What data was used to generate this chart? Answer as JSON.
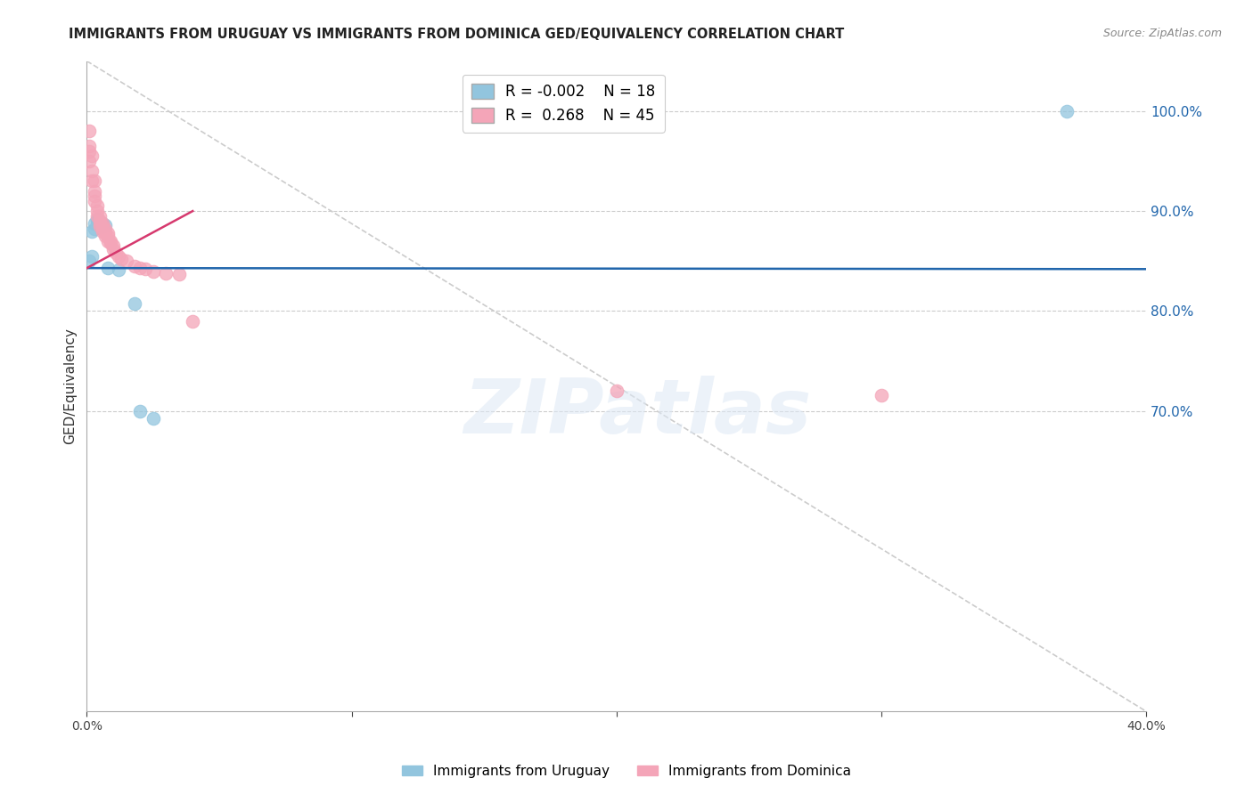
{
  "title": "IMMIGRANTS FROM URUGUAY VS IMMIGRANTS FROM DOMINICA GED/EQUIVALENCY CORRELATION CHART",
  "source": "Source: ZipAtlas.com",
  "ylabel": "GED/Equivalency",
  "ytick_values": [
    1.0,
    0.9,
    0.8,
    0.7
  ],
  "xlim": [
    0.0,
    0.4
  ],
  "ylim": [
    0.4,
    1.05
  ],
  "legend_r_blue": "-0.002",
  "legend_n_blue": "18",
  "legend_r_pink": "0.268",
  "legend_n_pink": "45",
  "legend_label_blue": "Immigrants from Uruguay",
  "legend_label_pink": "Immigrants from Dominica",
  "blue_scatter_x": [
    0.001,
    0.002,
    0.002,
    0.003,
    0.003,
    0.004,
    0.004,
    0.005,
    0.005,
    0.006,
    0.006,
    0.007,
    0.008,
    0.012,
    0.018,
    0.02,
    0.025,
    0.37
  ],
  "blue_scatter_y": [
    0.85,
    0.855,
    0.88,
    0.882,
    0.888,
    0.89,
    0.892,
    0.886,
    0.887,
    0.888,
    0.885,
    0.886,
    0.843,
    0.841,
    0.808,
    0.7,
    0.693,
    1.0
  ],
  "pink_scatter_x": [
    0.001,
    0.001,
    0.001,
    0.001,
    0.002,
    0.002,
    0.002,
    0.003,
    0.003,
    0.003,
    0.003,
    0.004,
    0.004,
    0.004,
    0.005,
    0.005,
    0.005,
    0.005,
    0.006,
    0.006,
    0.006,
    0.006,
    0.007,
    0.007,
    0.007,
    0.008,
    0.008,
    0.008,
    0.009,
    0.009,
    0.01,
    0.01,
    0.011,
    0.012,
    0.013,
    0.015,
    0.018,
    0.02,
    0.022,
    0.025,
    0.03,
    0.035,
    0.04,
    0.2,
    0.3
  ],
  "pink_scatter_y": [
    0.98,
    0.965,
    0.96,
    0.95,
    0.955,
    0.94,
    0.93,
    0.93,
    0.92,
    0.915,
    0.91,
    0.905,
    0.9,
    0.895,
    0.895,
    0.89,
    0.888,
    0.885,
    0.888,
    0.885,
    0.882,
    0.88,
    0.882,
    0.878,
    0.875,
    0.878,
    0.875,
    0.87,
    0.87,
    0.868,
    0.865,
    0.862,
    0.858,
    0.855,
    0.852,
    0.85,
    0.845,
    0.843,
    0.842,
    0.84,
    0.838,
    0.837,
    0.79,
    0.72,
    0.716
  ],
  "blue_line_x": [
    0.0,
    0.4
  ],
  "blue_line_y": [
    0.843,
    0.842
  ],
  "pink_line_x": [
    0.0,
    0.04
  ],
  "pink_line_y": [
    0.843,
    0.9
  ],
  "diagonal_line_x": [
    0.0,
    0.4
  ],
  "diagonal_line_y": [
    1.05,
    0.4
  ],
  "watermark_text": "ZIPatlas",
  "blue_color": "#92c5de",
  "pink_color": "#f4a5b8",
  "blue_line_color": "#2166ac",
  "pink_line_color": "#d6396e",
  "diagonal_color": "#cccccc",
  "grid_color": "#cccccc",
  "right_axis_color": "#2166ac",
  "title_fontsize": 10.5,
  "source_fontsize": 9
}
